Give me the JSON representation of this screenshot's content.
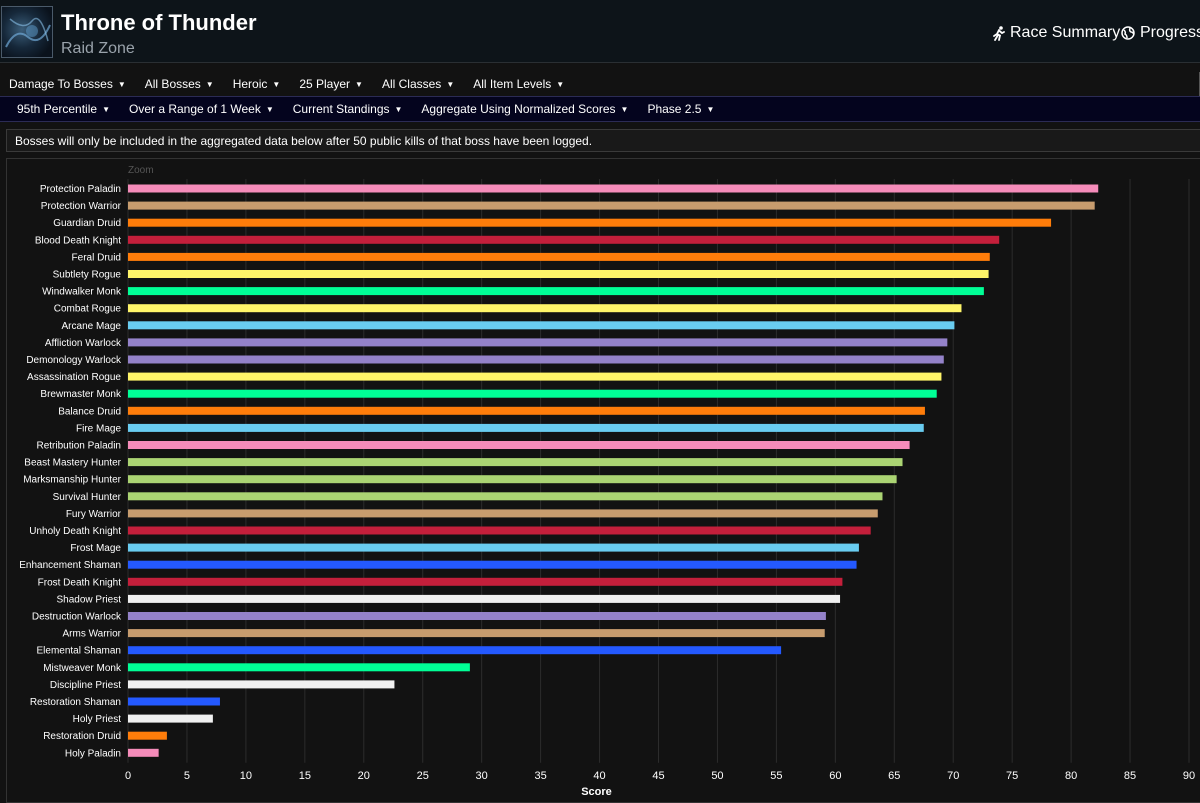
{
  "header": {
    "title": "Throne of Thunder",
    "subtitle": "Raid Zone",
    "race_summary_label": "Race Summary",
    "progress_label": "Progress"
  },
  "filters_row1": [
    {
      "label": "Damage To Bosses"
    },
    {
      "label": "All Bosses"
    },
    {
      "label": "Heroic"
    },
    {
      "label": "25 Player"
    },
    {
      "label": "All Classes"
    },
    {
      "label": "All Item Levels"
    }
  ],
  "filters_row2": [
    {
      "label": "95th Percentile"
    },
    {
      "label": "Over a Range of 1 Week"
    },
    {
      "label": "Current Standings"
    },
    {
      "label": "Aggregate Using Normalized Scores"
    },
    {
      "label": "Phase 2.5"
    }
  ],
  "notice": "Bosses will only be included in the aggregated data below after 50 public kills of that boss have been logged.",
  "zoom_label": "Zoom",
  "chart_data": {
    "type": "bar",
    "orientation": "horizontal",
    "xlabel": "Score",
    "xlim": [
      0,
      90
    ],
    "xticks": [
      0,
      5,
      10,
      15,
      20,
      25,
      30,
      35,
      40,
      45,
      50,
      55,
      60,
      65,
      70,
      75,
      80,
      85,
      90
    ],
    "grid": true,
    "categories": [
      "Protection Paladin",
      "Protection Warrior",
      "Guardian Druid",
      "Blood Death Knight",
      "Feral Druid",
      "Subtlety Rogue",
      "Windwalker Monk",
      "Combat Rogue",
      "Arcane Mage",
      "Affliction Warlock",
      "Demonology Warlock",
      "Assassination Rogue",
      "Brewmaster Monk",
      "Balance Druid",
      "Fire Mage",
      "Retribution Paladin",
      "Beast Mastery Hunter",
      "Marksmanship Hunter",
      "Survival Hunter",
      "Fury Warrior",
      "Unholy Death Knight",
      "Frost Mage",
      "Enhancement Shaman",
      "Frost Death Knight",
      "Shadow Priest",
      "Destruction Warlock",
      "Arms Warrior",
      "Elemental Shaman",
      "Mistweaver Monk",
      "Discipline Priest",
      "Restoration Shaman",
      "Holy Priest",
      "Restoration Druid",
      "Holy Paladin"
    ],
    "values": [
      82.3,
      82.0,
      78.3,
      73.9,
      73.1,
      73.0,
      72.6,
      70.7,
      70.1,
      69.5,
      69.2,
      69.0,
      68.6,
      67.6,
      67.5,
      66.3,
      65.7,
      65.2,
      64.0,
      63.6,
      63.0,
      62.0,
      61.8,
      60.6,
      60.4,
      59.2,
      59.1,
      55.4,
      29.0,
      22.6,
      7.8,
      7.2,
      3.3,
      2.6
    ],
    "colors": [
      "#F58CBA",
      "#C79C6E",
      "#FF7D0A",
      "#C41F3B",
      "#FF7D0A",
      "#FFF569",
      "#00FF96",
      "#FFF569",
      "#69CCF0",
      "#9482C9",
      "#9482C9",
      "#FFF569",
      "#00FF96",
      "#FF7D0A",
      "#69CCF0",
      "#F58CBA",
      "#ABD473",
      "#ABD473",
      "#ABD473",
      "#C79C6E",
      "#C41F3B",
      "#69CCF0",
      "#2459FF",
      "#C41F3B",
      "#F0F0F0",
      "#9482C9",
      "#C79C6E",
      "#2459FF",
      "#00FF96",
      "#F0F0F0",
      "#2459FF",
      "#F0F0F0",
      "#FF7D0A",
      "#F58CBA"
    ]
  }
}
